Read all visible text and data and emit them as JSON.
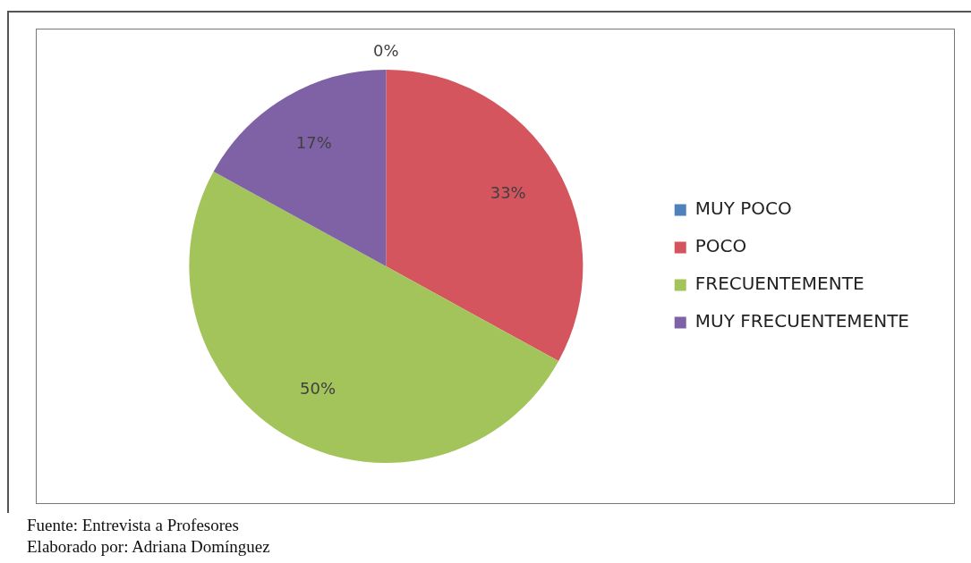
{
  "chart_data": {
    "type": "pie",
    "categories": [
      "MUY POCO",
      "POCO",
      "FRECUENTEMENTE",
      "MUY FRECUENTEMENTE"
    ],
    "values": [
      0,
      33,
      50,
      17
    ],
    "colors": [
      "#4f81bd",
      "#d4555d",
      "#a3c45a",
      "#7f62a6"
    ],
    "value_labels": [
      "0%",
      "33%",
      "50%",
      "17%"
    ],
    "legend": "right",
    "annotations": [
      "Fuente: Entrevista a Profesores",
      "Elaborado por: Adriana Domínguez"
    ]
  }
}
